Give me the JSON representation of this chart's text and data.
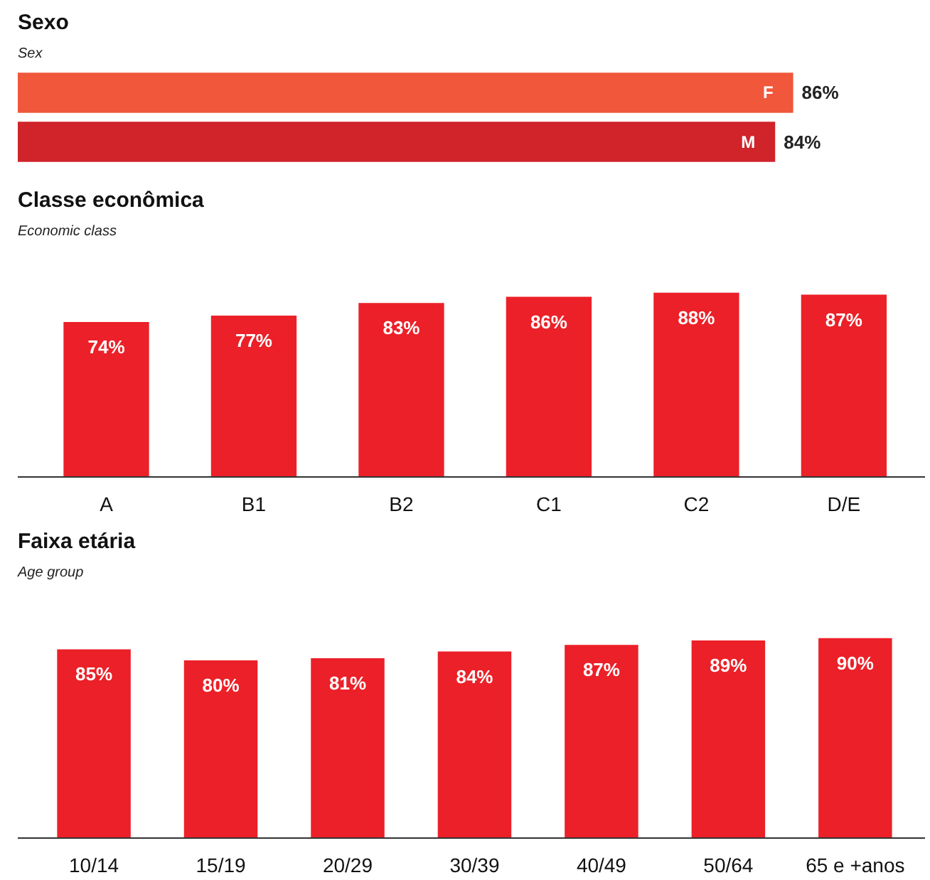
{
  "chart_data": [
    {
      "type": "bar",
      "title": "Sexo",
      "subtitle": "Sex",
      "orientation": "horizontal",
      "categories": [
        "F",
        "M"
      ],
      "values": [
        86,
        84
      ],
      "colors": [
        "#f0573b",
        "#d0232a"
      ],
      "value_labels": [
        "86%",
        "84%"
      ],
      "tick_labels": false
    },
    {
      "type": "bar",
      "title": "Classe econômica",
      "subtitle": "Economic class",
      "categories": [
        "A",
        "B1",
        "B2",
        "C1",
        "C2",
        "D/E"
      ],
      "values": [
        74,
        77,
        83,
        86,
        88,
        87
      ],
      "color": "#ec2028",
      "value_labels": [
        "74%",
        "77%",
        "83%",
        "86%",
        "88%",
        "87%"
      ],
      "tick_labels": "x"
    },
    {
      "type": "bar",
      "title": "Faixa etária",
      "subtitle": "Age group",
      "categories": [
        "10/14",
        "15/19",
        "20/29",
        "30/39",
        "40/49",
        "50/64",
        "65 e +anos"
      ],
      "values": [
        85,
        80,
        81,
        84,
        87,
        89,
        90
      ],
      "color": "#ec2028",
      "value_labels": [
        "85%",
        "80%",
        "81%",
        "84%",
        "87%",
        "89%",
        "90%"
      ],
      "tick_labels": "x"
    }
  ]
}
